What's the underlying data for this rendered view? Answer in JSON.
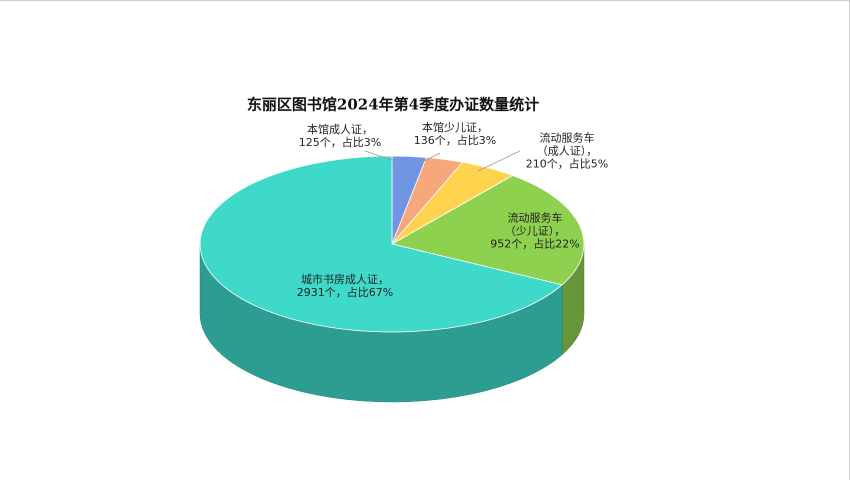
{
  "chart_data": {
    "type": "pie3d",
    "title": "东丽区图书馆2024年第4季度办证数量统计",
    "values": [
      125,
      136,
      210,
      952,
      2931
    ],
    "value_labels": [
      "本馆成人证，\n125个，占比3%",
      "本馆少儿证，\n136个，占比3%",
      "流动服务车\n（成人证），\n210个，占比5%",
      "流动服务车\n（少儿证），\n952个，占比22%",
      "城市书房成人证，\n2931个，占比67%"
    ],
    "colors": [
      "#6f95e3",
      "#f6a77c",
      "#ffd34d",
      "#8ed14f",
      "#3fd9c9"
    ]
  }
}
